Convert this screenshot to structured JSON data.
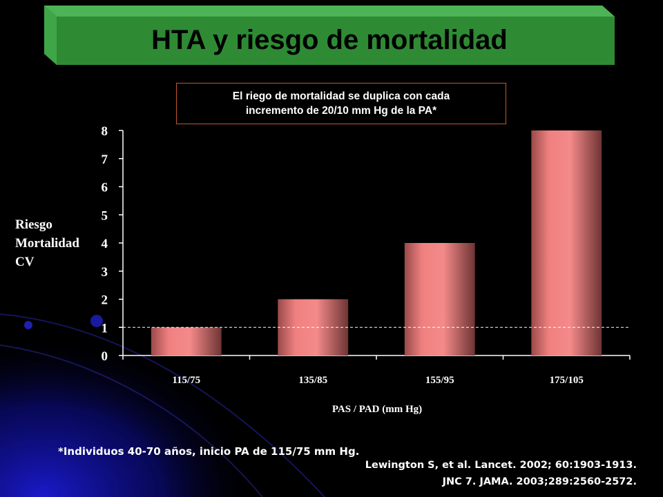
{
  "slide": {
    "title": "HTA y riesgo de mortalidad",
    "note_line1": "El riego de mortalidad se duplica con cada",
    "note_line2": "incremento  de 20/10 mm Hg de la PA*",
    "footnote": "*Individuos  40-70 años,  inicio PA de  115/75 mm Hg.",
    "reference1": "Lewington S, et al. Lancet.  2002; 60:1903-1913.",
    "reference2": "JNC 7. JAMA. 2003;289:2560-2572.",
    "colors": {
      "background": "#000000",
      "banner": "#2e8b34",
      "bar": "#f08080",
      "note_border": "#c05a2a"
    }
  },
  "chart_data": {
    "type": "bar",
    "title": "",
    "categories": [
      "115/75",
      "135/85",
      "155/95",
      "175/105"
    ],
    "values": [
      1,
      2,
      4,
      8
    ],
    "xlabel": "PAS / PAD (mm Hg)",
    "ylabel_lines": [
      "Riesgo",
      "Mortalidad",
      "CV"
    ],
    "ylim": [
      0,
      8
    ],
    "yticks": [
      0,
      1,
      2,
      3,
      4,
      5,
      6,
      7,
      8
    ],
    "reference_line": 1,
    "grid": false,
    "legend": "none"
  }
}
